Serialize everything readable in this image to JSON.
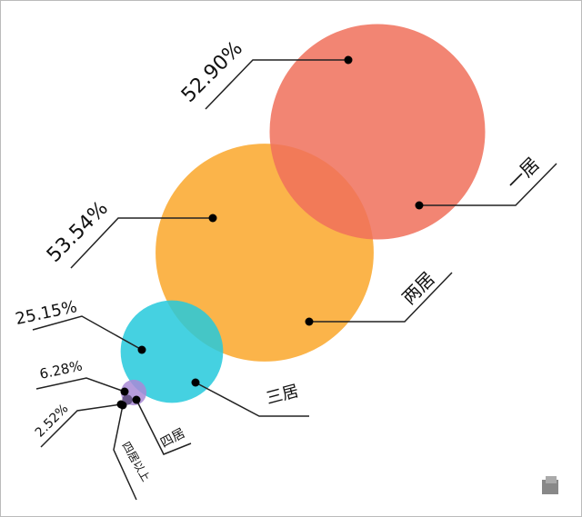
{
  "chart_data": {
    "type": "bubble",
    "categories": [
      "一居",
      "两居",
      "三居",
      "四居",
      "四居以上"
    ],
    "values": [
      52.9,
      53.54,
      25.15,
      6.28,
      2.52
    ],
    "value_labels": [
      "52.90%",
      "53.54%",
      "25.15%",
      "6.28%",
      "2.52%"
    ],
    "colors": [
      "#f0705a",
      "#faa72a",
      "#25c9dc",
      "#a98ad6",
      "#5b4a7a"
    ]
  }
}
